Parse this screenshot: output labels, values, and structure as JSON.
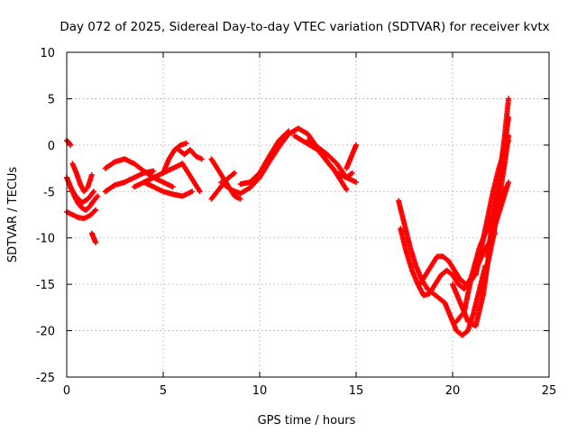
{
  "chart_data": {
    "type": "scatter",
    "title": "Day 072 of 2025, Sidereal Day-to-day VTEC variation (SDTVAR) for receiver kvtx",
    "xlabel": "GPS time / hours",
    "ylabel": "SDTVAR / TECUs",
    "xlim": [
      0,
      25
    ],
    "ylim": [
      -25,
      10
    ],
    "xticks": [
      0,
      5,
      10,
      15,
      20,
      25
    ],
    "yticks": [
      -25,
      -20,
      -15,
      -10,
      -5,
      0,
      5,
      10
    ],
    "grid": true,
    "marker": "+",
    "color": "#ff0000",
    "series": [
      {
        "x": [
          0.0,
          0.1,
          0.2
        ],
        "y": [
          0.5,
          0.3,
          0.0
        ]
      },
      {
        "x": [
          0.0,
          0.2,
          0.4,
          0.6,
          0.8,
          1.0,
          1.2,
          1.4,
          1.6
        ],
        "y": [
          -3.5,
          -4.5,
          -5.5,
          -6.3,
          -6.8,
          -7.0,
          -6.6,
          -6.0,
          -5.5
        ]
      },
      {
        "x": [
          0.0,
          0.3,
          0.6,
          0.9,
          1.2,
          1.5
        ],
        "y": [
          -7.2,
          -7.5,
          -7.8,
          -7.9,
          -7.6,
          -7.0
        ]
      },
      {
        "x": [
          0.2,
          0.5,
          0.8,
          1.1,
          1.4
        ],
        "y": [
          -4.6,
          -5.6,
          -6.2,
          -5.8,
          -5.0
        ]
      },
      {
        "x": [
          0.3,
          0.5,
          0.7,
          0.9,
          1.1,
          1.3
        ],
        "y": [
          -2.0,
          -3.0,
          -4.2,
          -5.0,
          -4.5,
          -3.2
        ]
      },
      {
        "x": [
          1.3,
          1.4,
          1.5
        ],
        "y": [
          -9.5,
          -10.0,
          -10.5
        ]
      },
      {
        "x": [
          2.0,
          2.5,
          3.0,
          3.5,
          4.0,
          4.5
        ],
        "y": [
          -5.0,
          -4.3,
          -4.0,
          -3.5,
          -3.0,
          -2.8
        ]
      },
      {
        "x": [
          2.0,
          2.5,
          3.0,
          3.5,
          4.0,
          4.5,
          5.0,
          5.5
        ],
        "y": [
          -2.5,
          -1.8,
          -1.5,
          -2.0,
          -2.8,
          -3.5,
          -4.0,
          -4.5
        ]
      },
      {
        "x": [
          3.5,
          4.0,
          4.5,
          5.0,
          5.5,
          6.0
        ],
        "y": [
          -4.5,
          -4.0,
          -3.5,
          -3.0,
          -2.5,
          -2.0
        ]
      },
      {
        "x": [
          4.0,
          4.5,
          5.0,
          5.5,
          6.0,
          6.5
        ],
        "y": [
          -4.0,
          -4.5,
          -5.0,
          -5.3,
          -5.5,
          -5.0
        ]
      },
      {
        "x": [
          5.0,
          5.3,
          5.6,
          5.9,
          6.2
        ],
        "y": [
          -3.0,
          -1.5,
          -0.5,
          0.0,
          0.2
        ]
      },
      {
        "x": [
          6.0,
          6.3,
          6.6,
          6.9
        ],
        "y": [
          -2.0,
          -3.0,
          -4.0,
          -5.0
        ]
      },
      {
        "x": [
          5.8,
          6.1,
          6.4,
          6.7,
          7.0
        ],
        "y": [
          -0.5,
          -1.0,
          -0.5,
          -1.2,
          -1.5
        ]
      },
      {
        "x": [
          7.5,
          7.8,
          8.1,
          8.4,
          8.7,
          9.0
        ],
        "y": [
          -1.5,
          -2.5,
          -3.5,
          -4.5,
          -5.5,
          -5.8
        ]
      },
      {
        "x": [
          7.5,
          7.8,
          8.1,
          8.4,
          8.7
        ],
        "y": [
          -5.8,
          -5.0,
          -4.2,
          -3.5,
          -3.0
        ]
      },
      {
        "x": [
          8.0,
          8.5,
          9.0,
          9.5,
          10.0,
          10.5,
          11.0,
          11.5,
          12.0,
          12.5,
          13.0,
          13.5,
          14.0,
          14.5,
          14.8
        ],
        "y": [
          -4.0,
          -4.8,
          -5.2,
          -4.6,
          -3.5,
          -1.8,
          -0.2,
          1.2,
          1.8,
          1.2,
          -0.3,
          -1.8,
          -3.0,
          -3.5,
          -3.0
        ]
      },
      {
        "x": [
          9.0,
          9.5,
          10.0,
          10.5,
          11.0,
          11.5
        ],
        "y": [
          -4.2,
          -4.0,
          -3.0,
          -1.2,
          0.5,
          1.5
        ]
      },
      {
        "x": [
          11.8,
          12.2,
          12.6,
          13.0,
          13.4,
          13.8,
          14.2,
          14.5
        ],
        "y": [
          1.0,
          0.5,
          0.0,
          -0.5,
          -1.5,
          -2.5,
          -3.8,
          -4.8
        ]
      },
      {
        "x": [
          12.5,
          13.0,
          13.5,
          14.0,
          14.5,
          15.0
        ],
        "y": [
          0.5,
          -0.2,
          -1.0,
          -2.0,
          -3.5,
          -4.0
        ]
      },
      {
        "x": [
          14.5,
          14.7,
          14.9,
          15.0
        ],
        "y": [
          -2.5,
          -1.5,
          -0.5,
          0.0
        ]
      },
      {
        "x": [
          17.2,
          17.5,
          17.8,
          18.1,
          18.4,
          18.7,
          19.0,
          19.3,
          19.6,
          19.9,
          20.2,
          20.5,
          20.8,
          21.1,
          21.4,
          21.7
        ],
        "y": [
          -6.0,
          -8.5,
          -11.0,
          -13.0,
          -14.5,
          -15.5,
          -16.0,
          -16.5,
          -17.0,
          -18.5,
          -20.0,
          -20.5,
          -20.0,
          -18.0,
          -15.5,
          -13.0
        ]
      },
      {
        "x": [
          17.3,
          17.6,
          17.9,
          18.2,
          18.5,
          18.8,
          19.1,
          19.4,
          19.7,
          20.0,
          20.3,
          20.6,
          20.9,
          21.2
        ],
        "y": [
          -9.0,
          -11.5,
          -13.5,
          -15.0,
          -16.2,
          -16.0,
          -15.0,
          -14.0,
          -13.5,
          -14.0,
          -15.0,
          -15.5,
          -14.5,
          -13.5
        ]
      },
      {
        "x": [
          18.3,
          18.6,
          18.9,
          19.2,
          19.5,
          19.8,
          20.1,
          20.4,
          20.7,
          21.0,
          21.3,
          21.6,
          21.9,
          22.2
        ],
        "y": [
          -15.0,
          -14.0,
          -13.0,
          -12.0,
          -12.0,
          -12.5,
          -13.5,
          -14.5,
          -15.0,
          -14.5,
          -13.0,
          -11.5,
          -10.5,
          -9.5
        ]
      },
      {
        "x": [
          20.0,
          20.4,
          20.8,
          21.2,
          21.6,
          22.0,
          22.4,
          22.7,
          22.9
        ],
        "y": [
          -15.0,
          -17.0,
          -19.0,
          -19.5,
          -16.0,
          -10.0,
          -4.0,
          1.0,
          5.0
        ]
      },
      {
        "x": [
          20.2,
          20.6,
          21.0,
          21.4,
          21.8,
          22.2,
          22.5,
          22.8
        ],
        "y": [
          -19.0,
          -18.0,
          -14.0,
          -11.0,
          -9.0,
          -7.0,
          -6.0,
          -4.5
        ]
      },
      {
        "x": [
          21.8,
          22.1,
          22.4,
          22.7,
          22.9
        ],
        "y": [
          -12.0,
          -8.0,
          -4.0,
          0.0,
          3.0
        ]
      },
      {
        "x": [
          21.5,
          21.8,
          22.1,
          22.4,
          22.7,
          22.9
        ],
        "y": [
          -16.0,
          -13.0,
          -10.0,
          -6.0,
          -2.0,
          1.0
        ]
      },
      {
        "x": [
          22.0,
          22.3,
          22.6,
          22.9
        ],
        "y": [
          -10.0,
          -8.0,
          -6.0,
          -4.0
        ]
      },
      {
        "x": [
          21.2,
          21.5,
          21.8,
          22.1,
          22.4,
          22.7,
          22.9
        ],
        "y": [
          -14.0,
          -11.0,
          -8.0,
          -5.0,
          -2.5,
          -0.5,
          0.5
        ]
      }
    ]
  }
}
